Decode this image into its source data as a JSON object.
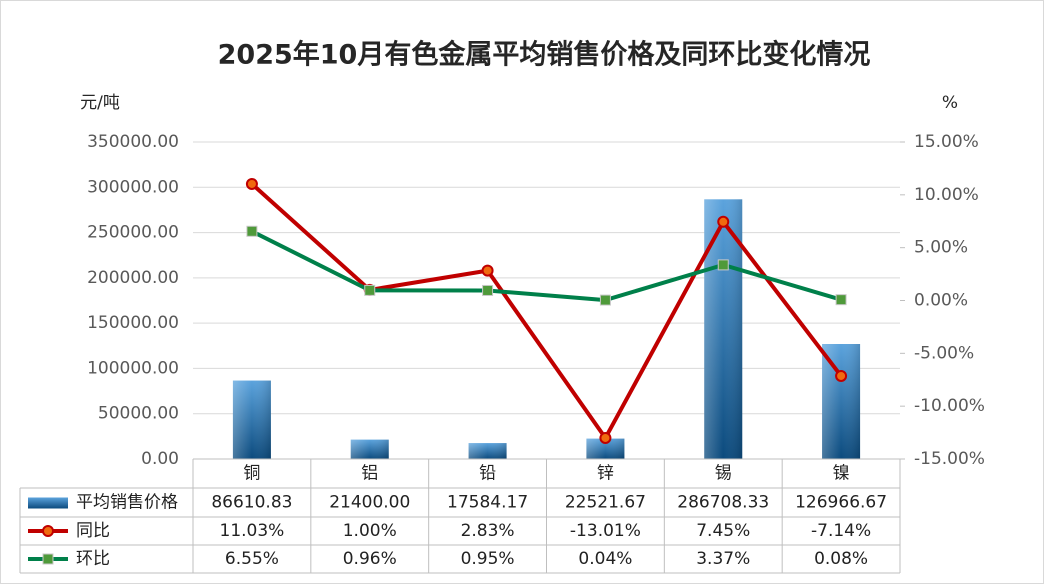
{
  "chart_data": {
    "type": "combo",
    "title": "2025年10月有色金属平均销售价格及同环比变化情况",
    "y_label": "元/吨",
    "y2_label": "%",
    "categories": [
      "铜",
      "铝",
      "铅",
      "锌",
      "锡",
      "镍"
    ],
    "series": [
      {
        "name": "平均销售价格",
        "type": "bar",
        "color": "#2e75b6",
        "values": [
          86610.83,
          21400.0,
          17584.17,
          22521.67,
          286708.33,
          126966.67
        ],
        "value_labels": [
          "86610.83",
          "21400.00",
          "17584.17",
          "22521.67",
          "286708.33",
          "126966.67"
        ]
      },
      {
        "name": "同比",
        "type": "line",
        "axis": "y2",
        "color": "#c00000",
        "values": [
          11.03,
          1.0,
          2.83,
          -13.01,
          7.45,
          -7.14
        ],
        "value_labels": [
          "11.03%",
          "1.00%",
          "2.83%",
          "-13.01%",
          "7.45%",
          "-7.14%"
        ]
      },
      {
        "name": "环比",
        "type": "line",
        "axis": "y2",
        "color": "#00804a",
        "values": [
          6.55,
          0.96,
          0.95,
          0.04,
          3.37,
          0.08
        ],
        "value_labels": [
          "6.55%",
          "0.96%",
          "0.95%",
          "0.04%",
          "3.37%",
          "0.08%"
        ]
      }
    ],
    "ylim": [
      0,
      350000
    ],
    "yticks": [
      {
        "value": 0,
        "label": "0.00"
      },
      {
        "value": 50000,
        "label": "50000.00"
      },
      {
        "value": 100000,
        "label": "100000.00"
      },
      {
        "value": 150000,
        "label": "150000.00"
      },
      {
        "value": 200000,
        "label": "200000.00"
      },
      {
        "value": 250000,
        "label": "250000.00"
      },
      {
        "value": 300000,
        "label": "300000.00"
      },
      {
        "value": 350000,
        "label": "350000.00"
      }
    ],
    "y2lim": [
      -15,
      15
    ],
    "y2ticks": [
      {
        "value": -15,
        "label": "-15.00%"
      },
      {
        "value": -10,
        "label": "-10.00%"
      },
      {
        "value": -5,
        "label": "-5.00%"
      },
      {
        "value": 0,
        "label": "0.00%"
      },
      {
        "value": 5,
        "label": "5.00%"
      },
      {
        "value": 10,
        "label": "10.00%"
      },
      {
        "value": 15,
        "label": "15.00%"
      }
    ],
    "grid": true
  }
}
